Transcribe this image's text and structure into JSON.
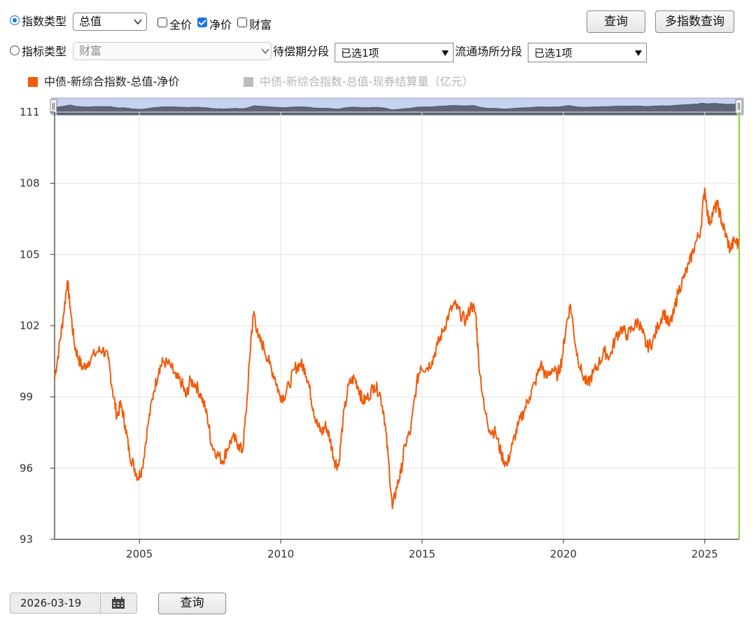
{
  "controls": {
    "index_type_label": "指数类型",
    "index_type_value": "总值",
    "opt_full_price": "全价",
    "opt_net_price": "净价",
    "opt_wealth": "财富",
    "indicator_type_label": "指标类型",
    "indicator_type_value": "财富",
    "maturity_label": "待偿期分段",
    "maturity_value": "已选1项",
    "venue_label": "流通场所分段",
    "venue_value": "已选1项",
    "query_button": "查询",
    "multi_query_button": "多指数查询",
    "date_value": "2026-03-19",
    "bottom_query_button": "查询"
  },
  "icons": {
    "calendar": "calendar-icon",
    "dropdown": "chevron-down-icon",
    "triangle": "triangle-down-icon"
  },
  "colors": {
    "series_active": "#f25a0a",
    "series_inactive": "#bdbdbd",
    "marker_line": "#8fd12c",
    "navigator_fill": "#5d6678",
    "navigator_bg": "#c6d2ef"
  },
  "chart_data": {
    "type": "line",
    "legend": [
      {
        "name": "中债-新综合指数-总值-净价",
        "active": true
      },
      {
        "name": "中债-新综合指数-总值-现券结算量（亿元）",
        "active": false
      }
    ],
    "y_ticks": [
      "93",
      "96",
      "99",
      "102",
      "105",
      "108",
      "111"
    ],
    "ylim": [
      93,
      111
    ],
    "x_ticks": [
      "2005",
      "2010",
      "2015",
      "2020",
      "2025"
    ],
    "xlim": [
      2002.0,
      2026.22
    ],
    "grid": true,
    "series": [
      {
        "name": "中债-新综合指数-总值-净价",
        "points": [
          [
            2002.0,
            99.8
          ],
          [
            2002.15,
            101.0
          ],
          [
            2002.3,
            102.3
          ],
          [
            2002.45,
            103.9
          ],
          [
            2002.55,
            102.8
          ],
          [
            2002.7,
            101.2
          ],
          [
            2002.85,
            100.6
          ],
          [
            2003.0,
            100.2
          ],
          [
            2003.2,
            100.5
          ],
          [
            2003.5,
            100.9
          ],
          [
            2003.7,
            101.0
          ],
          [
            2003.9,
            100.6
          ],
          [
            2004.05,
            99.3
          ],
          [
            2004.2,
            98.2
          ],
          [
            2004.35,
            98.7
          ],
          [
            2004.5,
            97.8
          ],
          [
            2004.65,
            96.6
          ],
          [
            2004.8,
            96.1
          ],
          [
            2004.95,
            95.6
          ],
          [
            2005.1,
            96.0
          ],
          [
            2005.3,
            97.8
          ],
          [
            2005.5,
            99.2
          ],
          [
            2005.7,
            100.2
          ],
          [
            2005.85,
            100.5
          ],
          [
            2006.1,
            100.3
          ],
          [
            2006.3,
            99.8
          ],
          [
            2006.5,
            99.6
          ],
          [
            2006.65,
            99.0
          ],
          [
            2006.8,
            99.7
          ],
          [
            2007.0,
            99.5
          ],
          [
            2007.2,
            99.0
          ],
          [
            2007.4,
            98.2
          ],
          [
            2007.55,
            97.0
          ],
          [
            2007.75,
            96.6
          ],
          [
            2007.95,
            96.3
          ],
          [
            2008.1,
            96.8
          ],
          [
            2008.3,
            97.3
          ],
          [
            2008.5,
            97.0
          ],
          [
            2008.65,
            96.7
          ],
          [
            2008.8,
            98.7
          ],
          [
            2008.95,
            101.5
          ],
          [
            2009.05,
            102.6
          ],
          [
            2009.2,
            101.5
          ],
          [
            2009.4,
            101.1
          ],
          [
            2009.6,
            100.4
          ],
          [
            2009.8,
            99.8
          ],
          [
            2009.95,
            99.1
          ],
          [
            2010.1,
            99.0
          ],
          [
            2010.3,
            99.5
          ],
          [
            2010.5,
            100.2
          ],
          [
            2010.7,
            100.4
          ],
          [
            2010.85,
            100.2
          ],
          [
            2011.0,
            99.5
          ],
          [
            2011.15,
            98.5
          ],
          [
            2011.3,
            97.8
          ],
          [
            2011.45,
            97.5
          ],
          [
            2011.6,
            97.8
          ],
          [
            2011.75,
            97.2
          ],
          [
            2011.9,
            96.3
          ],
          [
            2012.05,
            96.1
          ],
          [
            2012.2,
            98.0
          ],
          [
            2012.4,
            99.5
          ],
          [
            2012.6,
            99.8
          ],
          [
            2012.75,
            99.4
          ],
          [
            2012.9,
            98.8
          ],
          [
            2013.1,
            99.0
          ],
          [
            2013.3,
            99.5
          ],
          [
            2013.5,
            99.2
          ],
          [
            2013.65,
            98.3
          ],
          [
            2013.8,
            96.5
          ],
          [
            2013.95,
            94.3
          ],
          [
            2014.1,
            95.2
          ],
          [
            2014.25,
            95.8
          ],
          [
            2014.4,
            97.0
          ],
          [
            2014.6,
            97.6
          ],
          [
            2014.8,
            99.5
          ],
          [
            2014.95,
            100.3
          ],
          [
            2015.15,
            100.2
          ],
          [
            2015.35,
            100.5
          ],
          [
            2015.55,
            101.2
          ],
          [
            2015.75,
            101.8
          ],
          [
            2015.95,
            102.5
          ],
          [
            2016.15,
            102.9
          ],
          [
            2016.35,
            102.5
          ],
          [
            2016.55,
            102.2
          ],
          [
            2016.75,
            102.9
          ],
          [
            2016.9,
            102.5
          ],
          [
            2017.0,
            100.6
          ],
          [
            2017.2,
            98.5
          ],
          [
            2017.4,
            97.6
          ],
          [
            2017.6,
            97.5
          ],
          [
            2017.8,
            96.6
          ],
          [
            2018.0,
            96.1
          ],
          [
            2018.2,
            97.0
          ],
          [
            2018.4,
            97.8
          ],
          [
            2018.6,
            98.4
          ],
          [
            2018.8,
            99.0
          ],
          [
            2019.0,
            99.6
          ],
          [
            2019.2,
            100.4
          ],
          [
            2019.4,
            99.8
          ],
          [
            2019.6,
            100.2
          ],
          [
            2019.8,
            99.9
          ],
          [
            2019.95,
            100.6
          ],
          [
            2020.1,
            102.0
          ],
          [
            2020.25,
            102.9
          ],
          [
            2020.45,
            101.0
          ],
          [
            2020.65,
            100.0
          ],
          [
            2020.85,
            99.5
          ],
          [
            2021.05,
            100.0
          ],
          [
            2021.25,
            100.4
          ],
          [
            2021.45,
            100.9
          ],
          [
            2021.65,
            100.7
          ],
          [
            2021.85,
            101.5
          ],
          [
            2022.05,
            101.9
          ],
          [
            2022.25,
            101.6
          ],
          [
            2022.45,
            101.9
          ],
          [
            2022.65,
            102.2
          ],
          [
            2022.8,
            101.7
          ],
          [
            2022.95,
            101.1
          ],
          [
            2023.15,
            101.3
          ],
          [
            2023.35,
            102.0
          ],
          [
            2023.55,
            102.6
          ],
          [
            2023.75,
            102.0
          ],
          [
            2023.9,
            102.5
          ],
          [
            2024.05,
            103.4
          ],
          [
            2024.25,
            104.0
          ],
          [
            2024.45,
            104.6
          ],
          [
            2024.65,
            105.4
          ],
          [
            2024.85,
            106.0
          ],
          [
            2025.0,
            107.8
          ],
          [
            2025.15,
            106.3
          ],
          [
            2025.3,
            106.8
          ],
          [
            2025.45,
            107.1
          ],
          [
            2025.6,
            106.4
          ],
          [
            2025.75,
            105.8
          ],
          [
            2025.9,
            105.2
          ],
          [
            2026.05,
            105.6
          ],
          [
            2026.2,
            105.4
          ]
        ]
      }
    ]
  }
}
